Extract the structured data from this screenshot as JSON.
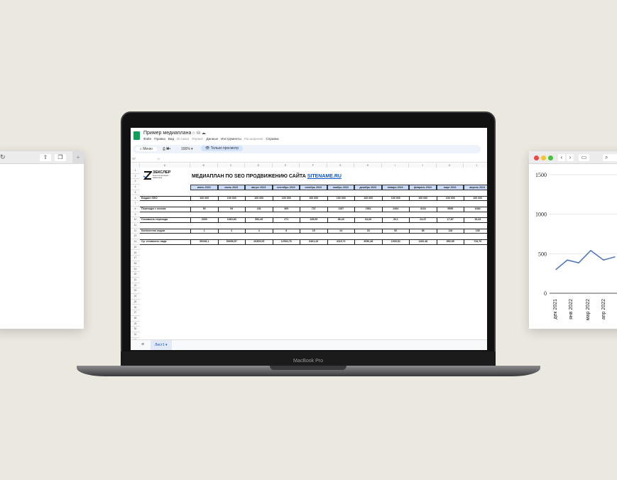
{
  "left_window": {
    "icons": [
      "reload-icon",
      "share-icon",
      "tabs-icon",
      "new-tab-icon"
    ]
  },
  "laptop": {
    "model_label": "MacBook Pro"
  },
  "sheets": {
    "doc_title": "Пример медиаплана",
    "menu": [
      "Файл",
      "Правка",
      "Вид",
      "Вставка",
      "Формат",
      "Данные",
      "Инструменты",
      "Расширения",
      "Справка"
    ],
    "toolbar": {
      "search": "Меню",
      "zoom": "100%",
      "view_only": "Только просмотр"
    },
    "cell_ref": "Y7",
    "fx": "fx",
    "columns": [
      "A",
      "B",
      "C",
      "D",
      "E",
      "F",
      "G",
      "H",
      "I",
      "J",
      "K",
      "L"
    ],
    "logo": {
      "name": "ЗЕКСЛЕР",
      "tagline": "агентство интернет-маркетинга"
    },
    "title": "МЕДИАПЛАН ПО SEO ПРОДВИЖЕНИЮ САЙТА",
    "title_link": "SITENAME.RU",
    "months": [
      "июнь 2023",
      "июль 2023",
      "август 2023",
      "сентябрь 2023",
      "октябрь 2023",
      "ноябрь 2023",
      "декабрь 2023",
      "январь 2024",
      "февраль 2024",
      "март 2024",
      "апрель 2024"
    ],
    "rows": [
      {
        "row": 6,
        "label": "Бюджет SEO",
        "values": [
          "100 000",
          "100 000",
          "100 000",
          "100 000",
          "100 000",
          "100 000",
          "100 000",
          "100 000",
          "100 000",
          "100 000",
          "100 000"
        ]
      },
      {
        "row": 8,
        "label": "Переходы с поиска",
        "values": [
          "50",
          "94",
          "181",
          "369",
          "737",
          "1157",
          "1561",
          "2494",
          "4104",
          "5595",
          "6482"
        ]
      },
      {
        "row": 10,
        "label": "Стоимость перехода",
        "values": [
          "2000",
          "1063,83",
          "552,49",
          "271",
          "135,69",
          "86,43",
          "64,06",
          "40,1",
          "24,37",
          "17,87",
          "15,43"
        ]
      },
      {
        "row": 12,
        "label": "Количество лидов",
        "values": [
          "1",
          "2",
          "4",
          "8",
          "15",
          "24",
          "33",
          "52",
          "86",
          "118",
          "136"
        ]
      },
      {
        "row": 14,
        "label": "Ср. стоимость лида",
        "values": [
          "95238,1",
          "50658,57",
          "26309,05",
          "12904,76",
          "6461,43",
          "4115,71",
          "3050,48",
          "1909,52",
          "1160,48",
          "850,95",
          "734,76"
        ]
      }
    ],
    "row_count": 32,
    "sheet_tab": "Лист1"
  },
  "chart_data": {
    "type": "line",
    "y_ticks": [
      "1500",
      "1000",
      "500",
      "0"
    ],
    "ylim": [
      0,
      1500
    ],
    "x_tick_labels": [
      "дек 2021",
      "янв 2022",
      "мар 2022",
      "апр 2022"
    ],
    "values": [
      300,
      420,
      385,
      540,
      420,
      460
    ],
    "grid": true,
    "line_color": "#4a72b8"
  },
  "colors": {
    "background": "#ebe8e0",
    "header_fill": "#c9daf8",
    "sheets_green": "#0f9d58",
    "link": "#1155cc"
  }
}
